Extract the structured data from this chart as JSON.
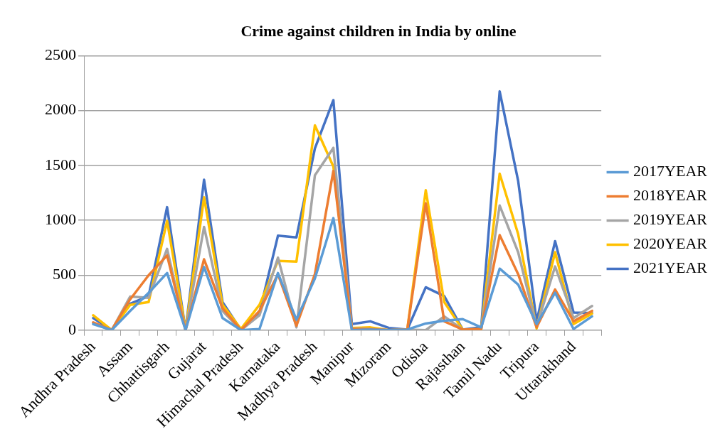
{
  "chart_data": {
    "type": "line",
    "title": "Crime against children in India by online",
    "categories": [
      "Andhra Pradesh",
      null,
      "Assam",
      null,
      "Chhattisgarh",
      null,
      "Gujarat",
      null,
      "Himachal Pradesh",
      null,
      "Karnataka",
      null,
      "Madhya Pradesh",
      null,
      "Manipur",
      null,
      "Mizoram",
      null,
      "Odisha",
      null,
      "Rajasthan",
      null,
      "Tamil Nadu",
      null,
      "Tripura",
      null,
      "Uttarakhand",
      null
    ],
    "series": [
      {
        "name": "2017YEAR",
        "color": "#5b9bd5",
        "values": [
          55,
          0,
          175,
          340,
          520,
          0,
          575,
          110,
          0,
          10,
          520,
          95,
          470,
          1020,
          0,
          5,
          0,
          5,
          60,
          85,
          100,
          25,
          560,
          415,
          55,
          340,
          10,
          125
        ]
      },
      {
        "name": "2018YEAR",
        "color": "#ed7d31",
        "values": [
          70,
          0,
          280,
          500,
          680,
          0,
          645,
          200,
          0,
          175,
          510,
          40,
          510,
          1450,
          10,
          10,
          0,
          5,
          1155,
          80,
          5,
          10,
          865,
          510,
          25,
          370,
          80,
          175
        ]
      },
      {
        "name": "2019YEAR",
        "color": "#a5a5a5",
        "values": [
          65,
          0,
          305,
          295,
          740,
          0,
          940,
          175,
          0,
          135,
          660,
          25,
          1410,
          1660,
          15,
          10,
          0,
          5,
          0,
          125,
          5,
          10,
          1135,
          710,
          30,
          580,
          110,
          220
        ]
      },
      {
        "name": "2020YEAR",
        "color": "#ffc000",
        "values": [
          135,
          0,
          230,
          255,
          995,
          0,
          1210,
          230,
          10,
          230,
          630,
          625,
          1865,
          1490,
          20,
          25,
          0,
          5,
          1275,
          255,
          5,
          10,
          1425,
          875,
          15,
          710,
          55,
          150
        ]
      },
      {
        "name": "2021YEAR",
        "color": "#4472c4",
        "values": [
          110,
          0,
          240,
          310,
          1120,
          0,
          1370,
          255,
          0,
          160,
          860,
          845,
          1655,
          2095,
          55,
          80,
          20,
          5,
          390,
          310,
          5,
          25,
          2175,
          1360,
          80,
          810,
          160,
          155
        ]
      }
    ],
    "ylim": [
      0,
      2500
    ],
    "yticks": [
      0,
      500,
      1000,
      1500,
      2000,
      2500
    ],
    "grid": "y",
    "legend": "right",
    "marker": "none",
    "line_style": "solid"
  }
}
